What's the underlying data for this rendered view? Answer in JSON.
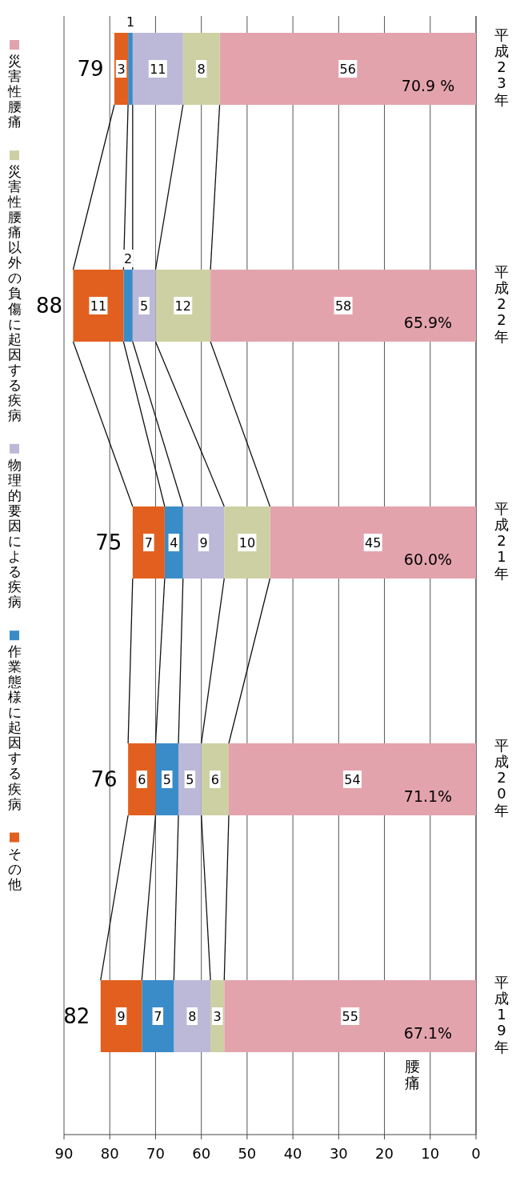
{
  "chart_data": {
    "type": "bar",
    "stacked": true,
    "orientation": "horizontal",
    "categories": [
      "平成23年",
      "平成22年",
      "平成21年",
      "平成20年",
      "平成19年"
    ],
    "series": [
      {
        "name": "災害性腰痛",
        "color": "#e3a3ad",
        "values": [
          56,
          58,
          45,
          54,
          55
        ]
      },
      {
        "name": "災害性腰痛以外の負傷に起因する疾病",
        "color": "#cdd0a2",
        "values": [
          8,
          12,
          10,
          6,
          3
        ]
      },
      {
        "name": "物理的要因による疾病",
        "color": "#bcb8d8",
        "values": [
          11,
          5,
          9,
          5,
          8
        ]
      },
      {
        "name": "作業態様に起因する疾病",
        "color": "#3a8cc9",
        "values": [
          1,
          2,
          4,
          5,
          7
        ]
      },
      {
        "name": "その他",
        "color": "#e2601f",
        "values": [
          3,
          11,
          7,
          6,
          9
        ]
      }
    ],
    "xlim": [
      90,
      0
    ],
    "xticks": [
      90,
      80,
      70,
      60,
      50,
      40,
      30,
      20,
      10,
      0
    ],
    "grid": "x",
    "legend": "left",
    "data_labels": true,
    "totals": [
      "79",
      "88",
      "75",
      "76",
      "82"
    ],
    "annotations": [
      "70.9 %",
      "65.9%",
      "60.0%",
      "71.1%",
      "67.1%",
      "腰痛"
    ]
  }
}
